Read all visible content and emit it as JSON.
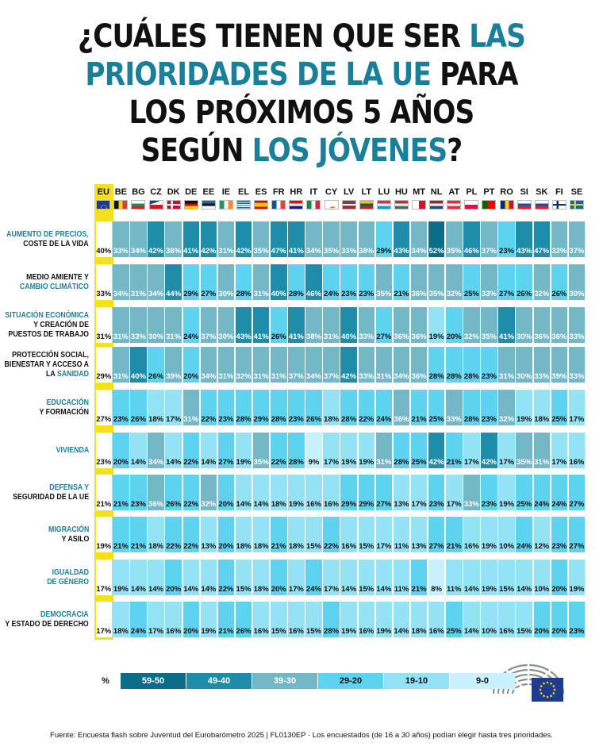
{
  "title": {
    "line1_a": "¿CUÁLES TIENEN QUE SER ",
    "line1_b": "LAS",
    "line2_a": "PRIORIDADES DE LA UE",
    "line2_b": " PARA",
    "line3": "LOS PRÓXIMOS 5 AÑOS",
    "line4_a": "SEGÚN ",
    "line4_b": "LOS JÓVENES",
    "line4_c": "?"
  },
  "colors": {
    "accent": "#1a7f9a",
    "eu_highlight": "#f5e01c",
    "bin_59_50": "#0b6d88",
    "bin_49_40": "#1d8da8",
    "bin_39_30": "#74b8c8",
    "bin_29_20": "#5ed3ef",
    "bin_19_10": "#93e3f5",
    "bin_9_0": "#c8f1fb"
  },
  "chart_data": {
    "type": "heatmap",
    "unit": "%",
    "countries": [
      "EU",
      "BE",
      "BG",
      "CZ",
      "DK",
      "DE",
      "EE",
      "IE",
      "EL",
      "ES",
      "FR",
      "HR",
      "IT",
      "CY",
      "LV",
      "LT",
      "LU",
      "HU",
      "MT",
      "NL",
      "AT",
      "PL",
      "PT",
      "RO",
      "SI",
      "SK",
      "FI",
      "SE"
    ],
    "rows": [
      {
        "label": [
          {
            "t": "AUMENTO DE PRECIOS,",
            "hl": true
          },
          {
            "t": "COSTE DE LA VIDA",
            "hl": false
          }
        ],
        "values": [
          40,
          33,
          34,
          42,
          38,
          41,
          42,
          31,
          42,
          35,
          47,
          41,
          34,
          35,
          33,
          38,
          29,
          43,
          34,
          52,
          35,
          46,
          37,
          23,
          43,
          47,
          32,
          37
        ]
      },
      {
        "label": [
          {
            "t": "MEDIO AMIENTE Y",
            "hl": false
          },
          {
            "t": "CAMBIO CLIMÁTICO",
            "hl": true
          }
        ],
        "values": [
          33,
          34,
          31,
          34,
          44,
          29,
          27,
          30,
          28,
          31,
          40,
          28,
          46,
          24,
          23,
          23,
          35,
          21,
          36,
          35,
          32,
          25,
          33,
          27,
          26,
          32,
          26,
          30
        ]
      },
      {
        "label": [
          {
            "t": "SITUACIÓN ECONÓMICA",
            "hl": true
          },
          {
            "t": "Y CREACIÓN DE",
            "hl": false
          },
          {
            "t": "PUESTOS DE TRABAJO",
            "hl": false
          }
        ],
        "values": [
          31,
          31,
          33,
          30,
          31,
          24,
          37,
          30,
          43,
          41,
          26,
          41,
          38,
          31,
          40,
          33,
          27,
          36,
          36,
          19,
          20,
          32,
          35,
          41,
          30,
          36,
          36,
          33
        ]
      },
      {
        "label": [
          {
            "t": "PROTECCIÓN SOCIAL,",
            "hl": false
          },
          {
            "t": "BIENESTAR Y ACCESO A",
            "hl": false
          },
          {
            "t": "LA ",
            "hl": false,
            "inline": "SANIDAD"
          }
        ],
        "values": [
          29,
          31,
          40,
          26,
          39,
          20,
          34,
          31,
          32,
          31,
          31,
          37,
          34,
          37,
          42,
          33,
          31,
          34,
          36,
          28,
          28,
          28,
          23,
          31,
          30,
          33,
          39,
          33
        ]
      },
      {
        "label": [
          {
            "t": "EDUCACIÓN",
            "hl": true
          },
          {
            "t": "Y FORMACIÓN",
            "hl": false
          }
        ],
        "values": [
          27,
          23,
          26,
          18,
          17,
          31,
          22,
          23,
          28,
          29,
          28,
          23,
          26,
          18,
          28,
          22,
          24,
          36,
          21,
          25,
          33,
          28,
          23,
          32,
          19,
          18,
          25,
          17
        ]
      },
      {
        "label": [
          {
            "t": "VIVIENDA",
            "hl": true
          }
        ],
        "values": [
          23,
          20,
          14,
          34,
          14,
          22,
          14,
          27,
          19,
          35,
          22,
          28,
          9,
          17,
          19,
          19,
          31,
          28,
          25,
          42,
          21,
          17,
          42,
          17,
          35,
          31,
          17,
          16
        ]
      },
      {
        "label": [
          {
            "t": "DEFENSA Y",
            "hl": true
          },
          {
            "t": "SEGURIDAD DE LA UE",
            "hl": false
          }
        ],
        "values": [
          21,
          21,
          23,
          36,
          26,
          22,
          32,
          20,
          14,
          14,
          18,
          19,
          16,
          16,
          29,
          29,
          27,
          13,
          17,
          23,
          17,
          33,
          23,
          19,
          25,
          24,
          24,
          27
        ]
      },
      {
        "label": [
          {
            "t": "MIGRACIÓN",
            "hl": true
          },
          {
            "t": "Y ASILO",
            "hl": false
          }
        ],
        "values": [
          19,
          21,
          21,
          18,
          22,
          22,
          13,
          20,
          18,
          18,
          21,
          18,
          15,
          22,
          16,
          15,
          17,
          11,
          13,
          27,
          21,
          16,
          19,
          10,
          24,
          12,
          23,
          27
        ]
      },
      {
        "label": [
          {
            "t": "IGUALDAD",
            "hl": true
          },
          {
            "t": "DE GÉNERO",
            "hl": true
          }
        ],
        "values": [
          17,
          19,
          14,
          14,
          20,
          14,
          14,
          22,
          15,
          18,
          20,
          17,
          24,
          17,
          14,
          15,
          14,
          11,
          21,
          8,
          11,
          14,
          19,
          15,
          14,
          10,
          20,
          19
        ]
      },
      {
        "label": [
          {
            "t": "DEMOCRACIA",
            "hl": true
          },
          {
            "t": "Y ESTADO DE DERECHO",
            "hl": false
          }
        ],
        "values": [
          17,
          18,
          24,
          17,
          16,
          20,
          19,
          21,
          26,
          16,
          15,
          16,
          15,
          28,
          19,
          16,
          19,
          14,
          18,
          16,
          25,
          14,
          10,
          16,
          15,
          20,
          20,
          23
        ]
      }
    ],
    "legend": {
      "label": "%",
      "bins": [
        "59-50",
        "49-40",
        "39-30",
        "29-20",
        "19-10",
        "9-0"
      ]
    }
  },
  "source": "Fuente: Encuesta flash sobre Juventud del Eurobarómetro 2025 | FL0130EP · Los encuestados (de 16 a 30 años) podían elegir hasta tres prioridades.",
  "icons": {
    "flags": "country-flag-icon",
    "logo": "european-parliament-logo-icon"
  }
}
